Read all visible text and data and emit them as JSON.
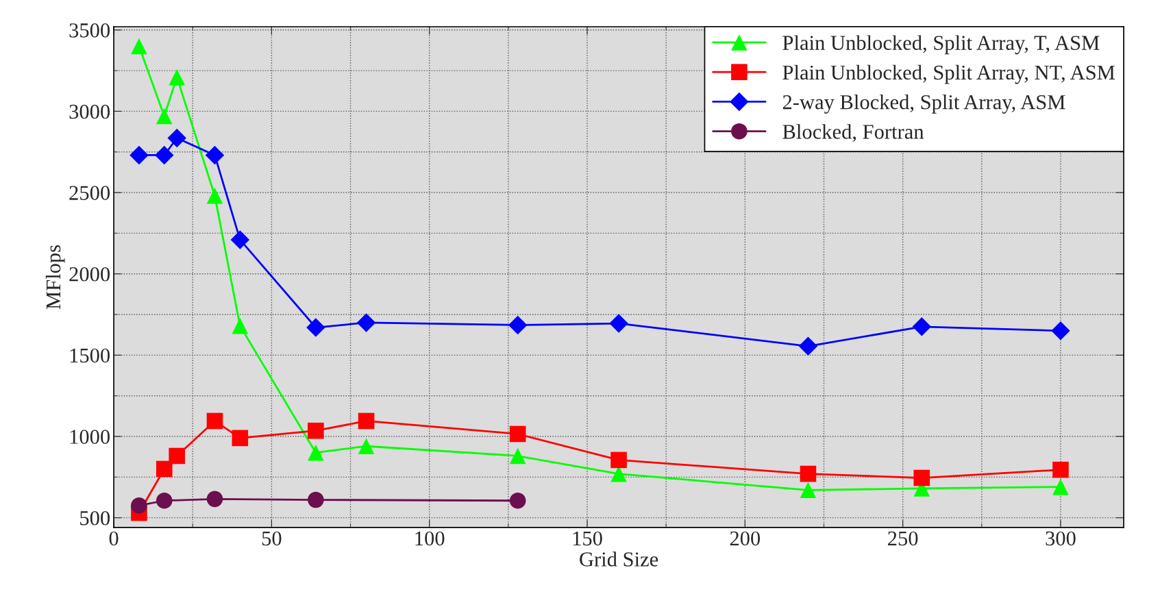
{
  "chart_data": {
    "type": "line",
    "xlabel": "Grid Size",
    "ylabel": "MFlops",
    "x": [
      8,
      16,
      20,
      32,
      40,
      64,
      80,
      128,
      160,
      220,
      256,
      300
    ],
    "series": [
      {
        "name": "Plain Unblocked, Split Array, T, ASM",
        "color": "#00ff00",
        "marker": "triangle",
        "values": [
          3400,
          2970,
          3210,
          2480,
          1680,
          900,
          940,
          880,
          770,
          670,
          680,
          690
        ]
      },
      {
        "name": "Plain Unblocked, Split Array, NT, ASM",
        "color": "#ff0000",
        "marker": "square",
        "values": [
          530,
          800,
          880,
          1095,
          990,
          1035,
          1095,
          1015,
          855,
          770,
          745,
          795
        ]
      },
      {
        "name": "2-way Blocked, Split Array, ASM",
        "color": "#0000ff",
        "marker": "diamond",
        "values": [
          2730,
          2730,
          2835,
          2730,
          2210,
          1670,
          1700,
          1685,
          1695,
          1555,
          1675,
          1650
        ]
      },
      {
        "name": "Blocked, Fortran",
        "color": "#6b0f4f",
        "marker": "circle",
        "x": [
          8,
          16,
          32,
          64,
          128
        ],
        "values": [
          575,
          605,
          615,
          610,
          605
        ]
      }
    ],
    "xlim": [
      0,
      320
    ],
    "xticks": [
      0,
      50,
      100,
      150,
      200,
      250,
      300
    ],
    "ylim": [
      440,
      3520
    ],
    "yticks": [
      500,
      1000,
      1500,
      2000,
      2500,
      3000,
      3500
    ],
    "grid": true,
    "legend": "top right",
    "line_style": "solid"
  }
}
